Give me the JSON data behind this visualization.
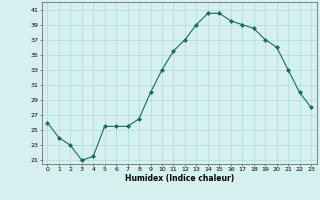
{
  "x": [
    0,
    1,
    2,
    3,
    4,
    5,
    6,
    7,
    8,
    9,
    10,
    11,
    12,
    13,
    14,
    15,
    16,
    17,
    18,
    19,
    20,
    21,
    22,
    23
  ],
  "y": [
    26,
    24,
    23,
    21,
    21.5,
    25.5,
    25.5,
    25.5,
    26.5,
    30,
    33,
    35.5,
    37,
    39,
    40.5,
    40.5,
    39.5,
    39,
    38.5,
    37,
    36,
    33,
    30,
    28
  ],
  "line_color": "#1a6b5a",
  "marker_color": "#1a6b5a",
  "bg_color": "#d6f0f0",
  "grid_color": "#aadddd",
  "xlabel": "Humidex (Indice chaleur)",
  "yticks": [
    21,
    23,
    25,
    27,
    29,
    31,
    33,
    35,
    37,
    39,
    41
  ],
  "xticks": [
    0,
    1,
    2,
    3,
    4,
    5,
    6,
    7,
    8,
    9,
    10,
    11,
    12,
    13,
    14,
    15,
    16,
    17,
    18,
    19,
    20,
    21,
    22,
    23
  ],
  "ylim": [
    20.5,
    42
  ],
  "xlim": [
    -0.5,
    23.5
  ],
  "figsize": [
    3.2,
    2.0
  ],
  "dpi": 100
}
